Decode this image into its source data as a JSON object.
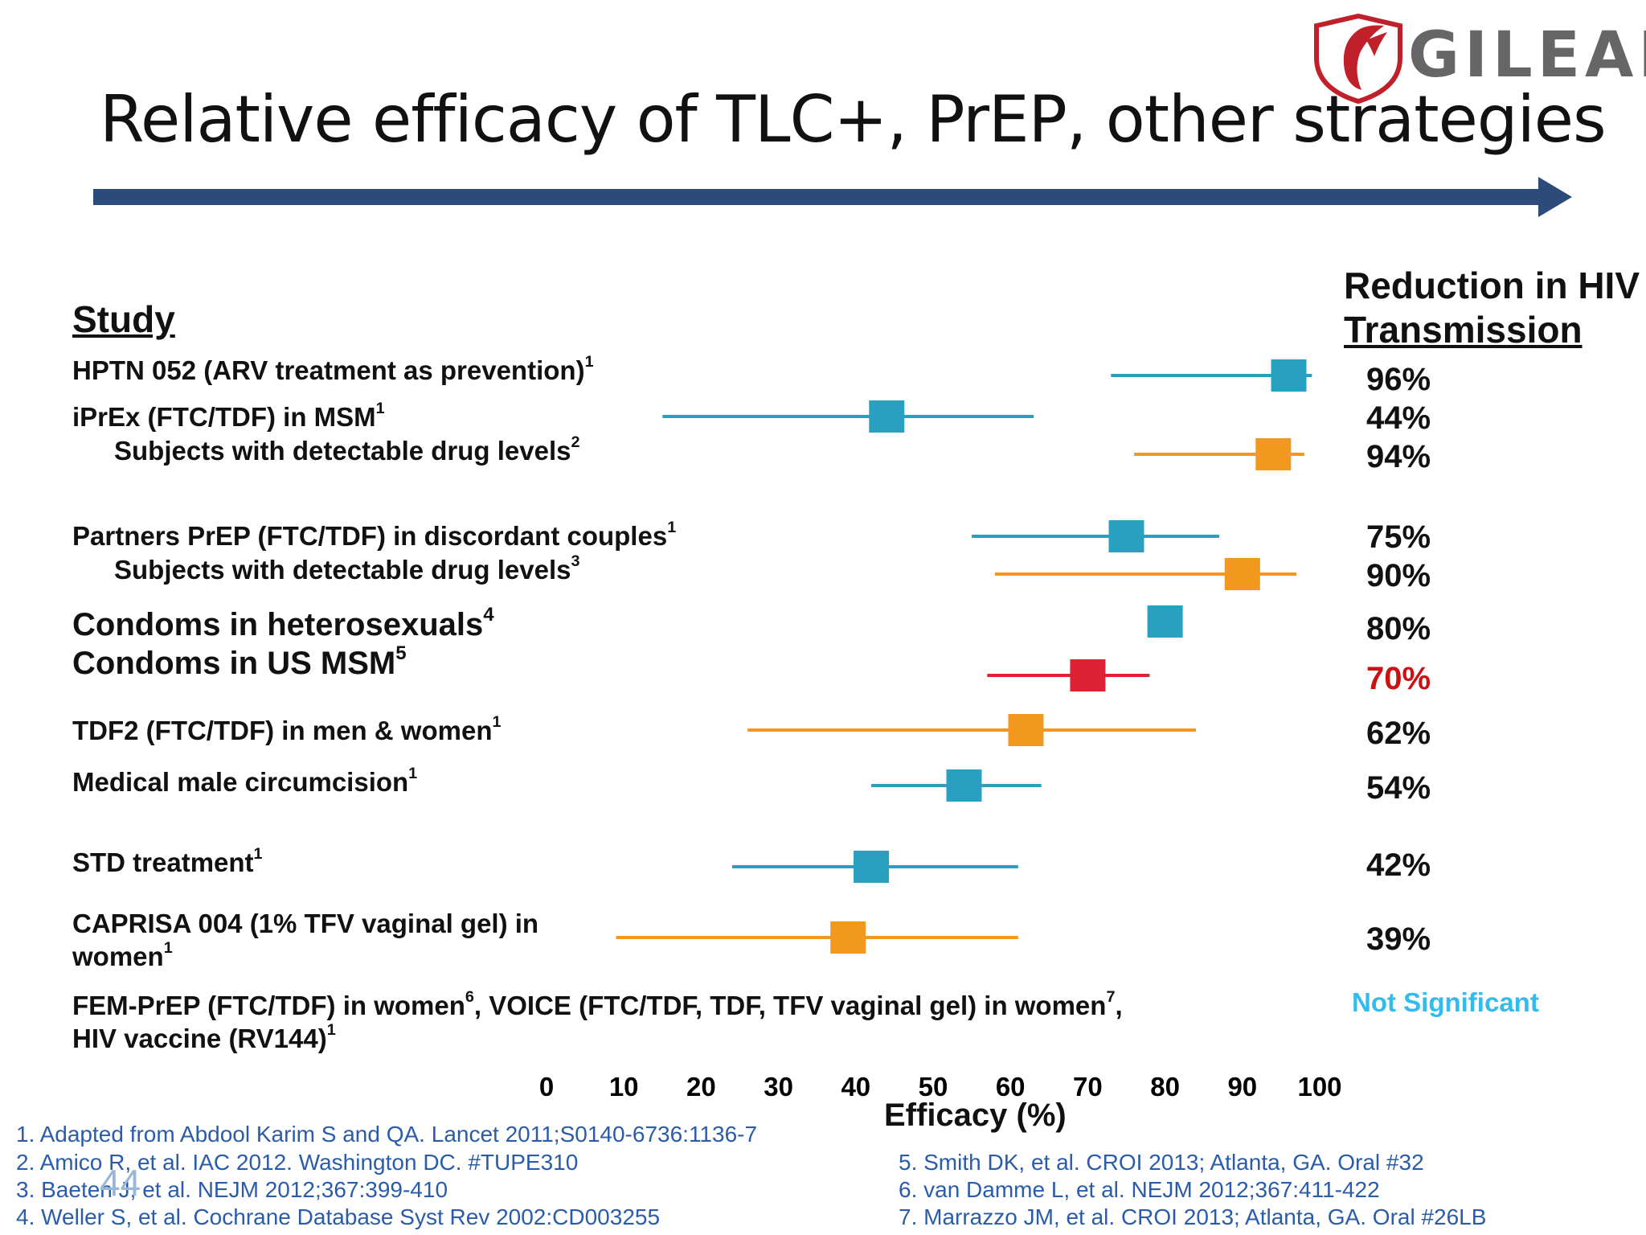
{
  "title": "Relative efficacy of TLC+, PrEP, other strategies",
  "logo": {
    "text": "GILEAD"
  },
  "headers": {
    "study": "Study",
    "reduction_line1": "Reduction in HIV",
    "reduction_line2": "Transmission"
  },
  "rows": [
    {
      "label": "HPTN 052 (ARV treatment as prevention)",
      "sup": "1",
      "indent": false,
      "big": false,
      "pct": "96%"
    },
    {
      "label": "iPrEx (FTC/TDF) in MSM",
      "sup": "1",
      "indent": false,
      "big": false,
      "pct": "44%"
    },
    {
      "label": "Subjects with detectable drug levels",
      "sup": "2",
      "indent": true,
      "big": false,
      "pct": "94%"
    },
    {
      "label": "Partners PrEP (FTC/TDF) in discordant couples",
      "sup": "1",
      "indent": false,
      "big": false,
      "pct": "75%"
    },
    {
      "label": "Subjects with detectable drug levels",
      "sup": "3",
      "indent": true,
      "big": false,
      "pct": "90%"
    },
    {
      "label": "Condoms in heterosexuals",
      "sup": "4",
      "indent": false,
      "big": true,
      "pct": "80%"
    },
    {
      "label": "Condoms in US MSM",
      "sup": "5",
      "indent": false,
      "big": true,
      "pct": "70%"
    },
    {
      "label": "TDF2 (FTC/TDF) in men & women",
      "sup": "1",
      "indent": false,
      "big": false,
      "pct": "62%"
    },
    {
      "label": "Medical male circumcision",
      "sup": "1",
      "indent": false,
      "big": false,
      "pct": "54%"
    },
    {
      "label": "STD treatment",
      "sup": "1",
      "indent": false,
      "big": false,
      "pct": "42%"
    },
    {
      "label": "CAPRISA 004 (1%  TFV vaginal gel) in",
      "label2": "women",
      "sup": "1",
      "indent": false,
      "big": false,
      "pct": "39%"
    }
  ],
  "not_significant": {
    "line1_a": "FEM-PrEP (FTC/TDF) in women",
    "line1_sup1": "6",
    "line1_b": ", VOICE (FTC/TDF, TDF, TFV vaginal gel) in women",
    "line1_sup2": "7",
    "line1_c": ",",
    "line2": "HIV vaccine (RV144)",
    "line2_sup": "1",
    "status": "Not Significant"
  },
  "chart_data": {
    "type": "forest",
    "xlabel": "Efficacy (%)",
    "xlim": [
      0,
      100
    ],
    "xticks": [
      0,
      10,
      20,
      30,
      40,
      50,
      60,
      70,
      80,
      90,
      100
    ],
    "series_colors": {
      "overall": "#2aa0c0",
      "adherent": "#f2981f",
      "condoms_msm": "#dd2233"
    },
    "points": [
      {
        "label": "HPTN 052",
        "estimate": 96,
        "ci": [
          73,
          99
        ],
        "color": "#2aa0c0"
      },
      {
        "label": "iPrEx",
        "estimate": 44,
        "ci": [
          15,
          63
        ],
        "color": "#2aa0c0"
      },
      {
        "label": "iPrEx detectable",
        "estimate": 94,
        "ci": [
          76,
          98
        ],
        "color": "#f2981f"
      },
      {
        "label": "Partners PrEP",
        "estimate": 75,
        "ci": [
          55,
          87
        ],
        "color": "#2aa0c0"
      },
      {
        "label": "Partners PrEP detectable",
        "estimate": 90,
        "ci": [
          58,
          97
        ],
        "color": "#f2981f"
      },
      {
        "label": "Condoms heterosexuals",
        "estimate": 80,
        "ci": null,
        "color": "#2aa0c0"
      },
      {
        "label": "Condoms US MSM",
        "estimate": 70,
        "ci": [
          57,
          78
        ],
        "color": "#dd2233"
      },
      {
        "label": "TDF2",
        "estimate": 62,
        "ci": [
          26,
          84
        ],
        "color": "#f2981f"
      },
      {
        "label": "Circumcision",
        "estimate": 54,
        "ci": [
          42,
          64
        ],
        "color": "#2aa0c0"
      },
      {
        "label": "STD treatment",
        "estimate": 42,
        "ci": [
          24,
          61
        ],
        "color": "#2aa0c0"
      },
      {
        "label": "CAPRISA 004",
        "estimate": 39,
        "ci": [
          9,
          61
        ],
        "color": "#f2981f"
      }
    ]
  },
  "references_left": [
    "1.  Adapted from Abdool Karim S and QA. Lancet 2011;S0140-6736:1136-7",
    "2. Amico R, et al. IAC 2012. Washington DC. #TUPE310",
    "3. Baeten J, et al. NEJM 2012;367:399-410",
    "4. Weller S, et al. Cochrane Database Syst Rev 2002:CD003255"
  ],
  "references_right": [
    "5. Smith DK, et al. CROI 2013; Atlanta, GA. Oral #32",
    "6. van Damme L, et al. NEJM 2012;367:411-422",
    "7. Marrazzo JM, et al. CROI 2013; Atlanta, GA. Oral #26LB"
  ],
  "slide_number": "44"
}
